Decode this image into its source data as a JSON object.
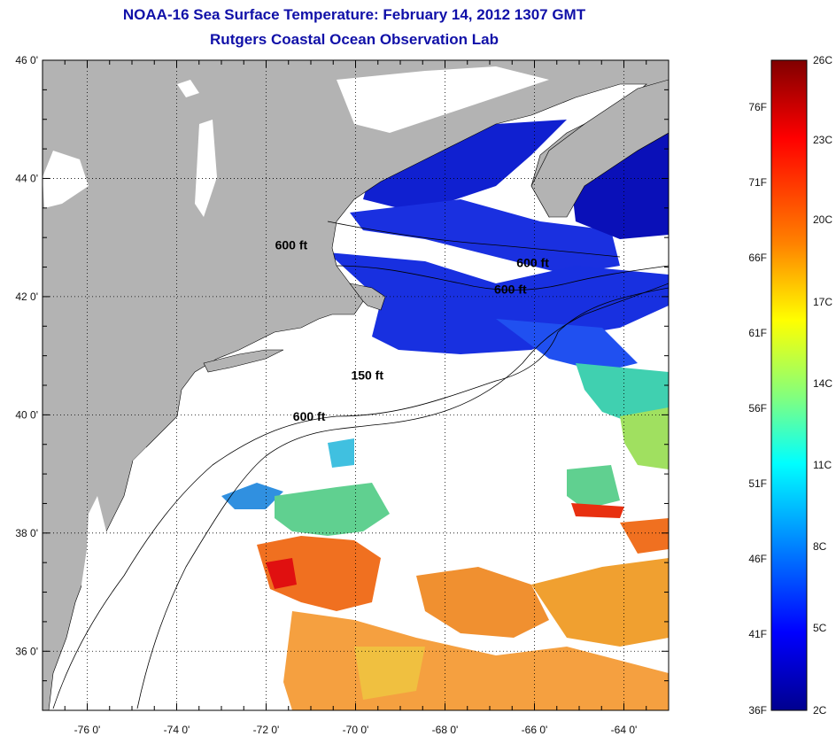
{
  "title": "NOAA-16 Sea Surface Temperature:  February 14, 2012 1307 GMT",
  "subtitle": "Rutgers Coastal Ocean Observation Lab",
  "lat_labels": [
    {
      "value": 46,
      "text": "46 0'"
    },
    {
      "value": 44,
      "text": "44 0'"
    },
    {
      "value": 42,
      "text": "42 0'"
    },
    {
      "value": 40,
      "text": "40 0'"
    },
    {
      "value": 38,
      "text": "38 0'"
    },
    {
      "value": 36,
      "text": "36 0'"
    }
  ],
  "lon_labels": [
    {
      "value": -76,
      "text": "-76 0'"
    },
    {
      "value": -74,
      "text": "-74 0'"
    },
    {
      "value": -72,
      "text": "-72 0'"
    },
    {
      "value": -70,
      "text": "-70 0'"
    },
    {
      "value": -68,
      "text": "-68 0'"
    },
    {
      "value": -66,
      "text": "-66 0'"
    },
    {
      "value": -64,
      "text": "-64 0'"
    }
  ],
  "contour_labels": [
    {
      "text": "600 ft",
      "lon": -71.8,
      "lat": 42.8
    },
    {
      "text": "600 ft",
      "lon": -66.4,
      "lat": 42.5
    },
    {
      "text": "600 ft",
      "lon": -66.9,
      "lat": 42.05
    },
    {
      "text": "150 ft",
      "lon": -70.1,
      "lat": 40.6
    },
    {
      "text": "600 ft",
      "lon": -71.4,
      "lat": 39.9
    }
  ],
  "colorbar": {
    "fahrenheit": [
      "76F",
      "71F",
      "66F",
      "61F",
      "56F",
      "51F",
      "46F",
      "41F",
      "36F"
    ],
    "celsius": [
      "26C",
      "23C",
      "20C",
      "17C",
      "14C",
      "11C",
      "8C",
      "5C",
      "2C"
    ],
    "stops": [
      "#800000",
      "#ff0000",
      "#ff8000",
      "#ffff00",
      "#80ff80",
      "#00ffff",
      "#0080ff",
      "#0000ff",
      "#00008f"
    ]
  },
  "colors": {
    "land": "#b3b3b3",
    "cloud": "#ffffff"
  }
}
